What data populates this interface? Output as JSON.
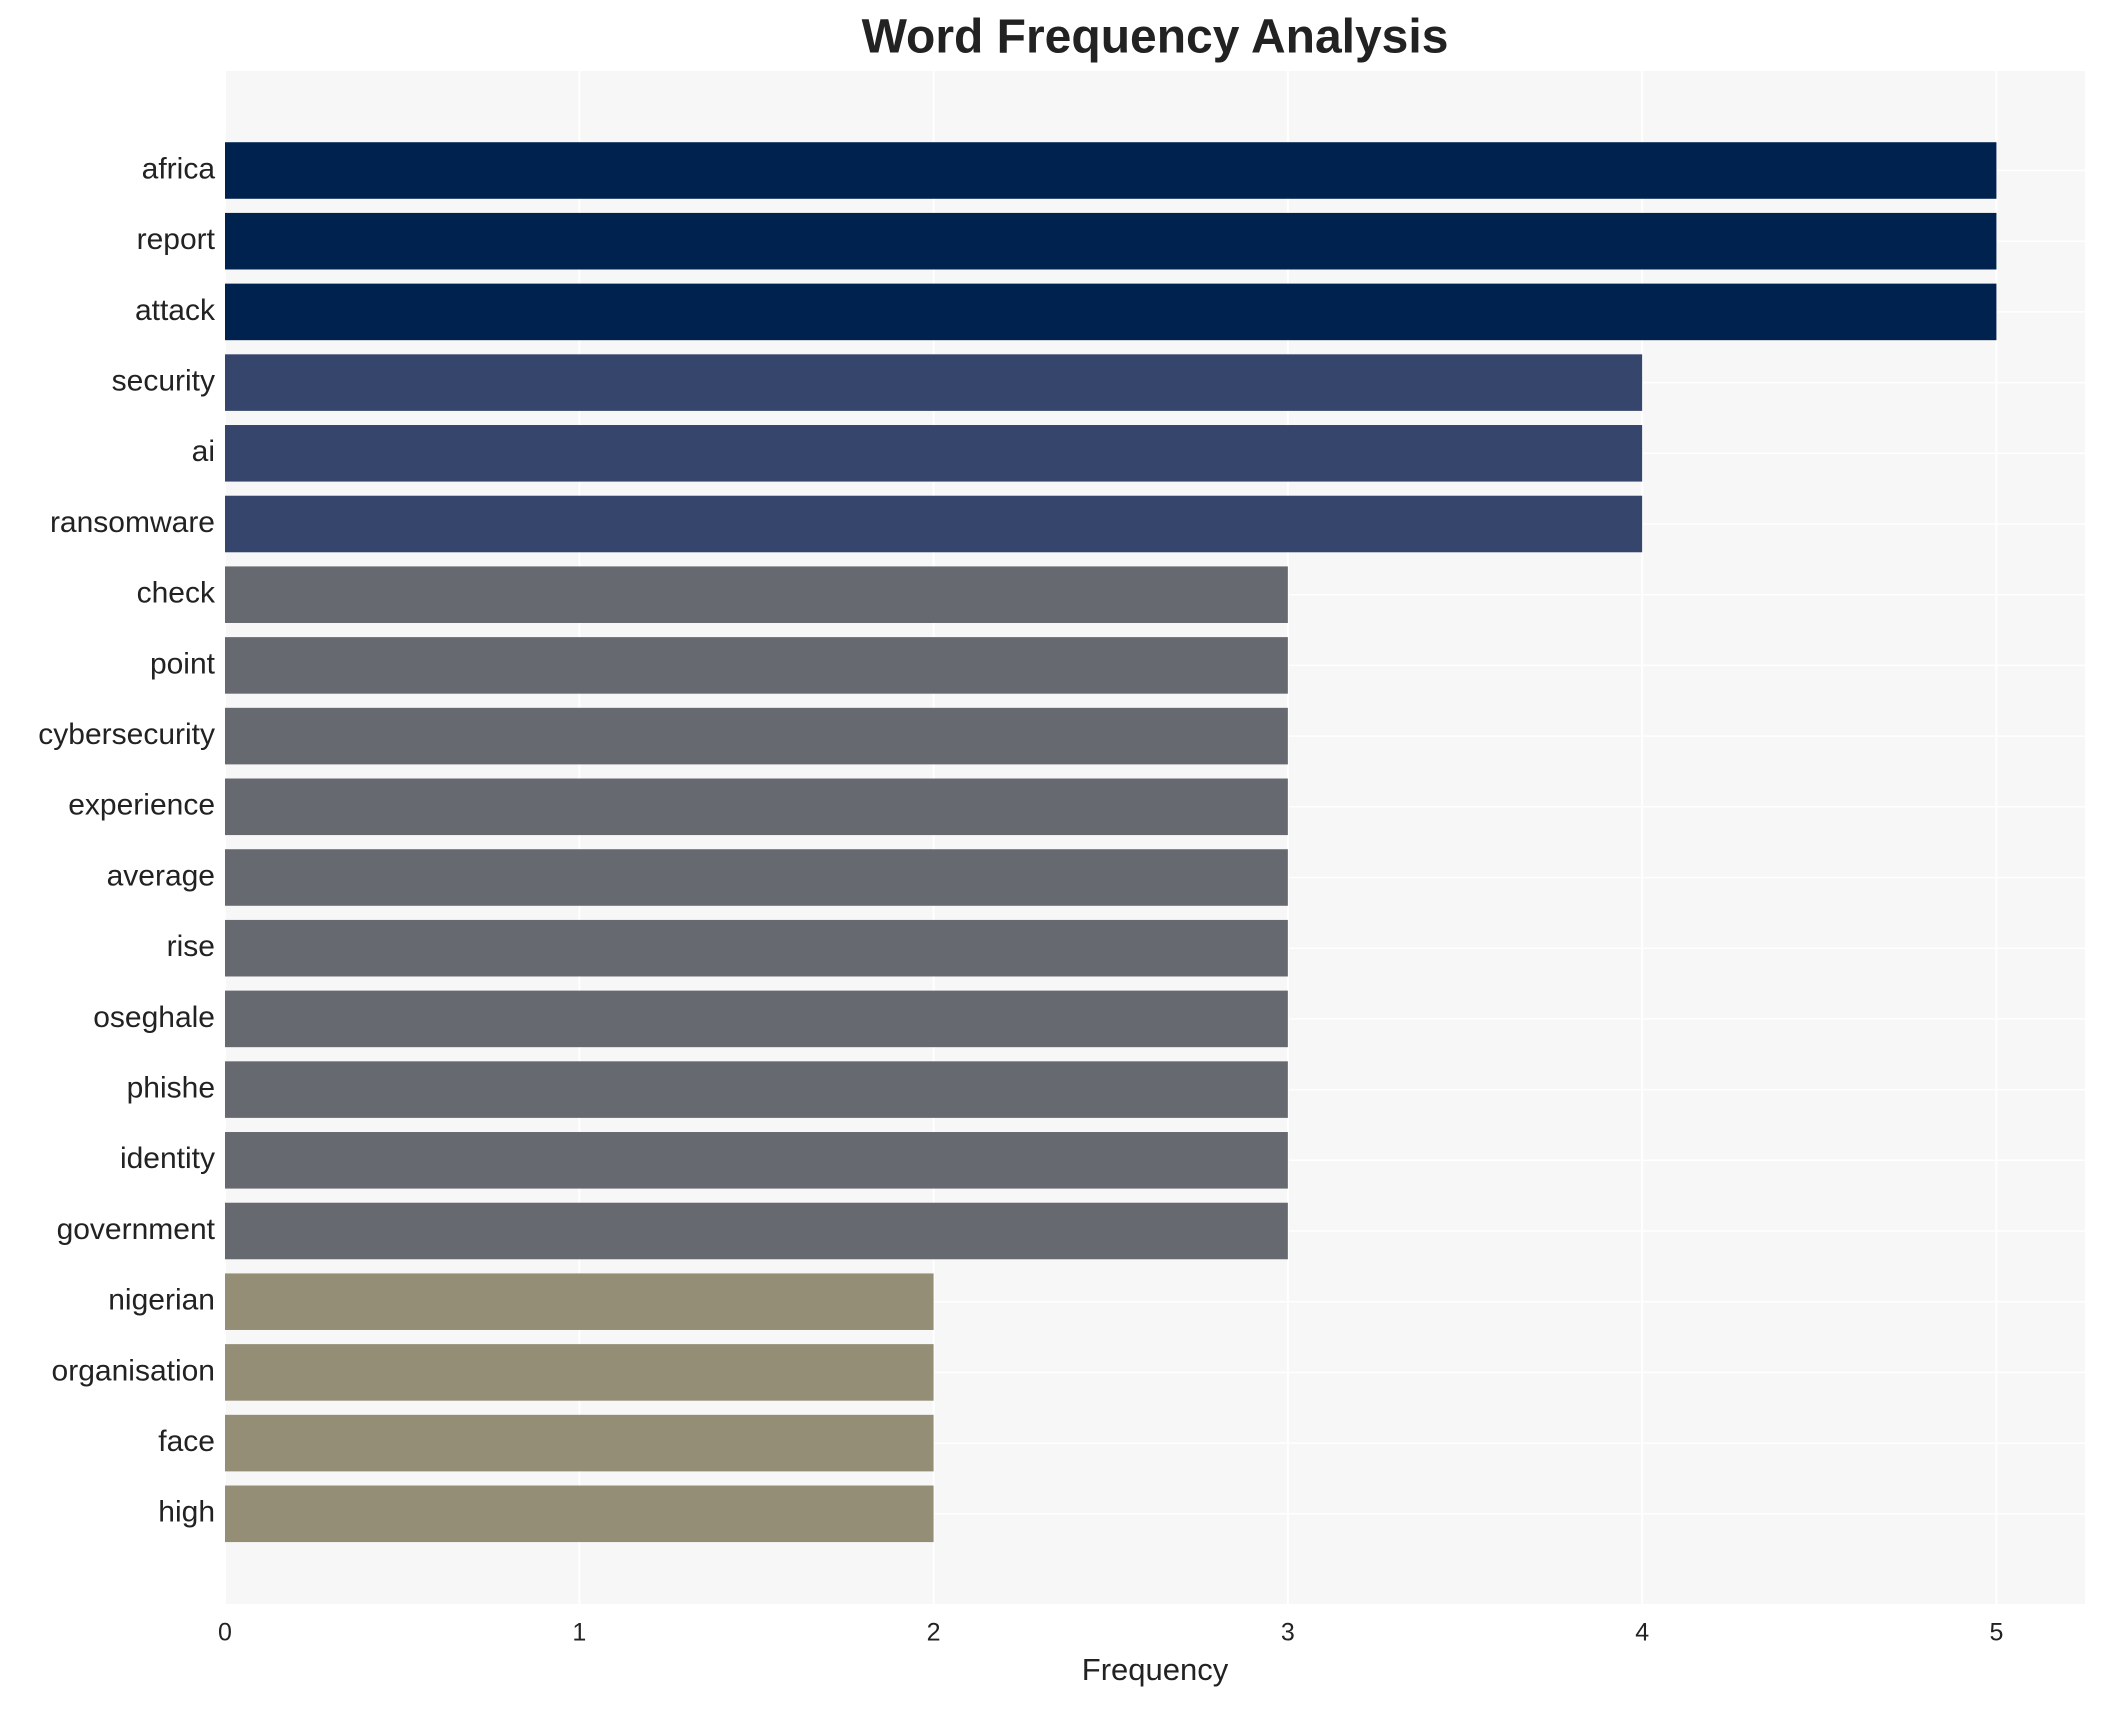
{
  "chart_data": {
    "type": "bar",
    "orientation": "horizontal",
    "title": "Word Frequency Analysis",
    "x_label": "Frequency",
    "categories": [
      "africa",
      "report",
      "attack",
      "security",
      "ai",
      "ransomware",
      "check",
      "point",
      "cybersecurity",
      "experience",
      "average",
      "rise",
      "oseghale",
      "phishe",
      "identity",
      "government",
      "nigerian",
      "organisation",
      "face",
      "high"
    ],
    "values": [
      5,
      5,
      5,
      4,
      4,
      4,
      3,
      3,
      3,
      3,
      3,
      3,
      3,
      3,
      3,
      3,
      2,
      2,
      2,
      2
    ],
    "colors": [
      "#00224e",
      "#00224e",
      "#00224e",
      "#35456c",
      "#35456c",
      "#35456c",
      "#666970",
      "#666970",
      "#666970",
      "#666970",
      "#666970",
      "#666970",
      "#666970",
      "#666970",
      "#666970",
      "#666970",
      "#948e77",
      "#948e77",
      "#948e77",
      "#948e77"
    ],
    "xlim": [
      0,
      5.25
    ],
    "xticks": [
      0,
      1,
      2,
      3,
      4,
      5
    ],
    "grid": true
  }
}
